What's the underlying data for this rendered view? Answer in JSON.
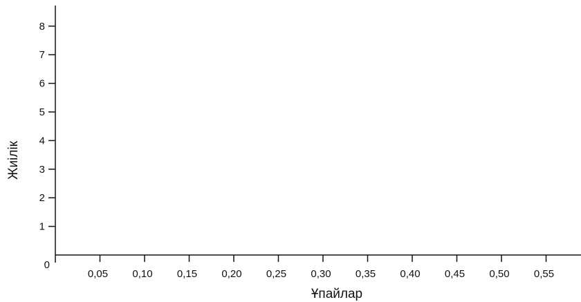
{
  "chart_data": {
    "type": "bar",
    "title": "",
    "xlabel": "Ұпайлар",
    "ylabel": "Жиілік",
    "origin_label": "0",
    "x_ticks": [
      0.05,
      0.1,
      0.15,
      0.2,
      0.25,
      0.3,
      0.35,
      0.4,
      0.45,
      0.5,
      0.55
    ],
    "x_tick_labels": [
      "0,05",
      "0,10",
      "0,15",
      "0,20",
      "0,25",
      "0,30",
      "0,35",
      "0,40",
      "0,45",
      "0,50",
      "0,55"
    ],
    "y_ticks": [
      1,
      2,
      3,
      4,
      5,
      6,
      7,
      8
    ],
    "y_tick_labels": [
      "1",
      "2",
      "3",
      "4",
      "5",
      "6",
      "7",
      "8"
    ],
    "xlim": [
      0,
      0.6
    ],
    "ylim": [
      0,
      8.8
    ],
    "series": [],
    "grid": false,
    "colors": {
      "axis": "#111111",
      "text": "#111111"
    }
  }
}
